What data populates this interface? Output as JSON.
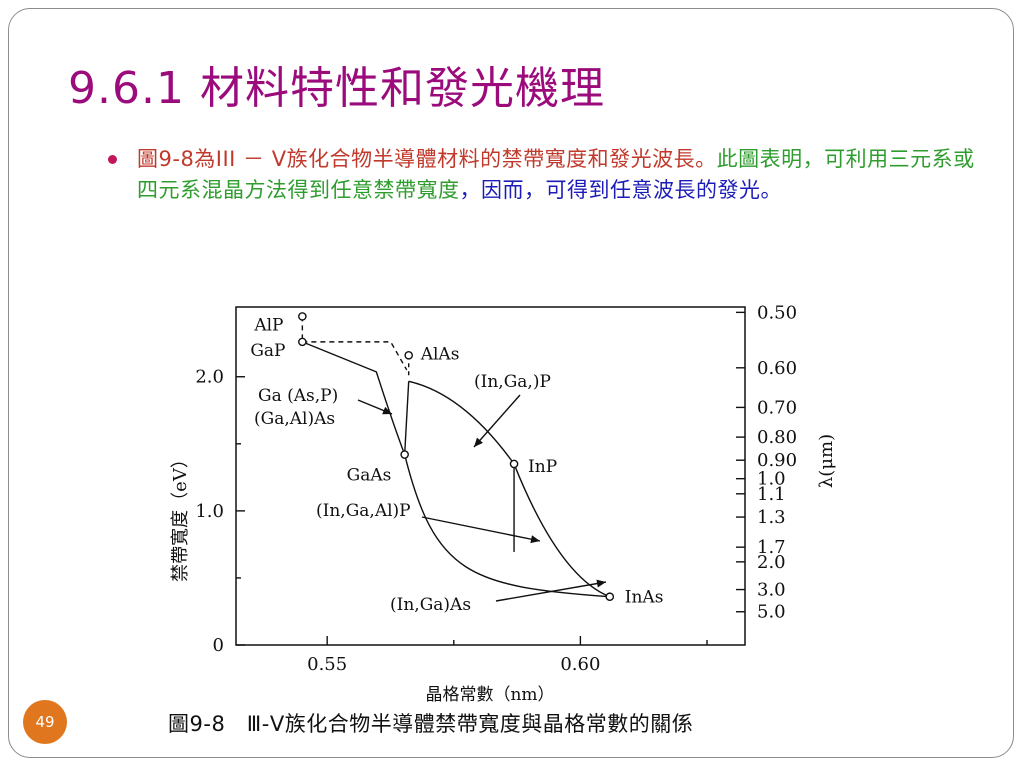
{
  "slide": {
    "title": "9.6.1 材料特性和發光機理",
    "number": "49",
    "bullet": {
      "part1": "圖9-8為III － V族化合物半導體材料的禁帶寬度和發光波長。",
      "part2": "此圖表明，可利用三元系或四元系混晶方法得到任意禁帶寬度",
      "part3": "，因而，可得到任意波長的發光。"
    },
    "caption": "圖9-8　Ⅲ-Ⅴ族化合物半導體禁帶寬度與晶格常數的關係"
  },
  "chart_data": {
    "type": "scatter",
    "xlabel": "晶格常數（nm）",
    "ylabel": "禁帶寬度（eV）",
    "y2label": "λ(μm)",
    "x_ticks": [
      "0.55",
      "0.60"
    ],
    "y_ticks": [
      "0",
      "1.0",
      "2.0"
    ],
    "y2_ticks": [
      "0.50",
      "0.60",
      "0.70",
      "0.80",
      "0.90",
      "1.0",
      "1.1",
      "1.3",
      "1.7",
      "2.0",
      "3.0",
      "5.0"
    ],
    "xlim": [
      0.532,
      0.6325
    ],
    "ylim": [
      0,
      2.52
    ],
    "points": [
      {
        "label": "AlP",
        "x": 0.5451,
        "y": 2.45
      },
      {
        "label": "GaP",
        "x": 0.5451,
        "y": 2.26
      },
      {
        "label": "AlAs",
        "x": 0.5661,
        "y": 2.16
      },
      {
        "label": "GaAs",
        "x": 0.5653,
        "y": 1.42
      },
      {
        "label": "InP",
        "x": 0.5869,
        "y": 1.35
      },
      {
        "label": "InAs",
        "x": 0.6058,
        "y": 0.36
      }
    ],
    "annotations": [
      "(In,Ga,)P",
      "Ga (As,P)",
      "(Ga,Al)As",
      "(In,Ga,Al)P",
      "(In,Ga)As"
    ]
  }
}
